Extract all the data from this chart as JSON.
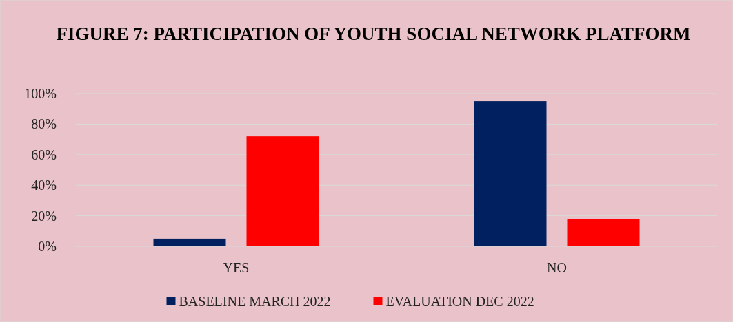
{
  "chart_data": {
    "type": "bar",
    "title": "FIGURE 7: PARTICIPATION OF YOUTH SOCIAL NETWORK PLATFORM",
    "categories": [
      "YES",
      "NO"
    ],
    "series": [
      {
        "name": "BASELINE MARCH 2022",
        "color": "#002060",
        "values": [
          5,
          95
        ]
      },
      {
        "name": "EVALUATION DEC 2022",
        "color": "#ff0000",
        "values": [
          72,
          18
        ]
      }
    ],
    "ylim": [
      0,
      100
    ],
    "yticks": [
      {
        "value": 0,
        "label": "0%"
      },
      {
        "value": 20,
        "label": "20%"
      },
      {
        "value": 40,
        "label": "40%"
      },
      {
        "value": 60,
        "label": "60%"
      },
      {
        "value": 80,
        "label": "80%"
      },
      {
        "value": 100,
        "label": "100%"
      }
    ],
    "grid": "y",
    "legend": "bottom"
  }
}
